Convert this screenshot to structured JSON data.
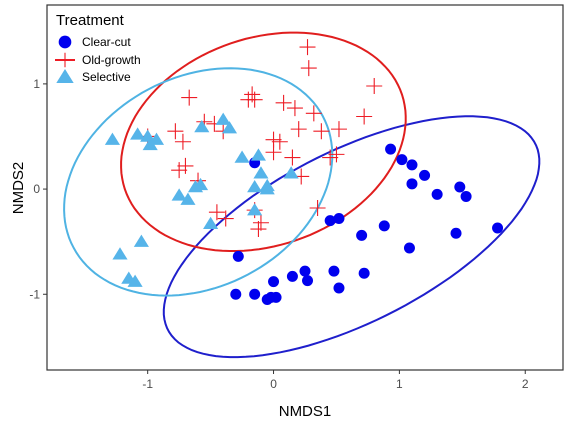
{
  "chart_data": {
    "type": "scatter",
    "title": "",
    "xlabel": "NMDS1",
    "ylabel": "NMDS2",
    "xlim": [
      -1.8,
      2.3
    ],
    "ylim": [
      -1.72,
      1.75
    ],
    "x_ticks": [
      -1,
      0,
      1,
      2
    ],
    "y_ticks": [
      -1,
      0,
      1
    ],
    "x_tick_labels": [
      "-1",
      "0",
      "1",
      "2"
    ],
    "y_tick_labels": [
      "-1",
      "0",
      "1"
    ],
    "grid": false,
    "legend": {
      "title": "Treatment",
      "position": "top-left",
      "entries": [
        "Clear-cut",
        "Old-growth",
        "Selective"
      ]
    },
    "ellipses": true,
    "series": [
      {
        "name": "Clear-cut",
        "color": "#0000ee",
        "ellipse_color": "#1f1fcc",
        "marker": "circle",
        "x": [
          0.93,
          1.02,
          1.1,
          1.2,
          1.48,
          1.53,
          1.1,
          1.3,
          1.45,
          1.78,
          0.45,
          0.52,
          0.88,
          0.7,
          1.08,
          -0.15,
          -0.28,
          -0.3,
          -0.15,
          -0.05,
          -0.02,
          0.0,
          0.15,
          0.25,
          0.27,
          0.48,
          0.52,
          0.72,
          0.02
        ],
        "y": [
          0.38,
          0.28,
          0.23,
          0.13,
          0.02,
          -0.07,
          0.05,
          -0.05,
          -0.42,
          -0.37,
          -0.3,
          -0.28,
          -0.35,
          -0.44,
          -0.56,
          0.25,
          -0.64,
          -1.0,
          -1.0,
          -1.05,
          -1.03,
          -0.88,
          -0.83,
          -0.78,
          -0.87,
          -0.78,
          -0.94,
          -0.8,
          -1.03
        ]
      },
      {
        "name": "Old-growth",
        "color": "#ee1c25",
        "ellipse_color": "#e01e1e",
        "marker": "plus",
        "x": [
          0.27,
          0.28,
          0.8,
          0.72,
          -0.67,
          -0.55,
          -0.2,
          -0.17,
          -0.15,
          0.08,
          0.17,
          0.2,
          0.32,
          0.38,
          0.52,
          -1.0,
          -0.78,
          -0.72,
          -0.47,
          -0.4,
          0.0,
          -0.75,
          -0.7,
          -0.6,
          0.0,
          0.05,
          0.15,
          0.22,
          0.45,
          0.5,
          -0.45,
          -0.38,
          -0.15,
          -0.1,
          -0.12,
          0.35
        ],
        "y": [
          1.35,
          1.15,
          0.98,
          0.69,
          0.87,
          0.64,
          0.85,
          0.9,
          0.85,
          0.82,
          0.77,
          0.57,
          0.72,
          0.55,
          0.57,
          0.5,
          0.55,
          0.45,
          0.62,
          0.55,
          0.47,
          0.18,
          0.22,
          0.08,
          0.35,
          0.45,
          0.3,
          0.12,
          0.3,
          0.33,
          -0.22,
          -0.28,
          -0.2,
          -0.32,
          -0.38,
          -0.18
        ]
      },
      {
        "name": "Selective",
        "color": "#56b4e9",
        "ellipse_color": "#4fb3e3",
        "marker": "triangle",
        "x": [
          -1.28,
          -1.08,
          -0.98,
          -0.93,
          -0.57,
          -0.4,
          -0.35,
          -1.0,
          -0.58,
          -0.75,
          -0.68,
          -0.62,
          -0.25,
          -0.12,
          -0.1,
          -0.15,
          -0.05,
          -0.05,
          0.14,
          -0.5,
          -0.15,
          -1.05,
          -1.22,
          -1.15,
          -1.1
        ],
        "y": [
          0.47,
          0.52,
          0.42,
          0.47,
          0.59,
          0.66,
          0.58,
          0.5,
          0.04,
          -0.06,
          -0.1,
          0.02,
          0.3,
          0.32,
          0.15,
          0.02,
          0.03,
          0.0,
          0.15,
          -0.33,
          -0.2,
          -0.5,
          -0.62,
          -0.85,
          -0.88
        ]
      }
    ]
  }
}
